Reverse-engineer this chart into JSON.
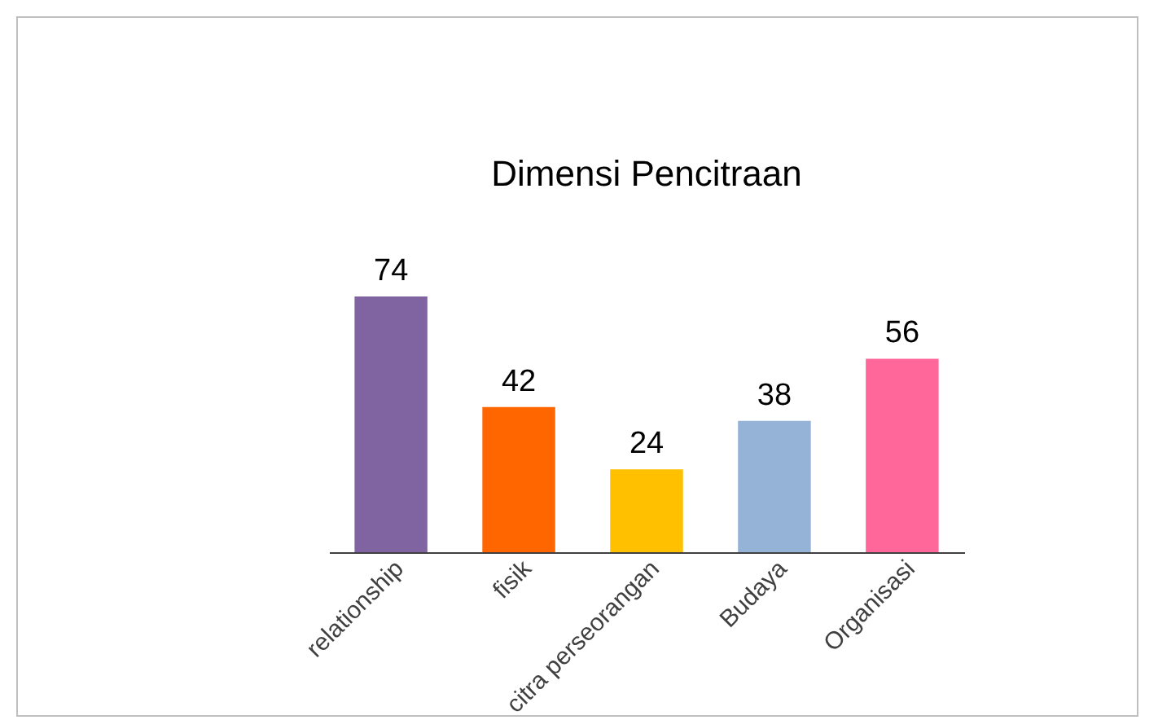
{
  "chart_data": {
    "type": "bar",
    "title": "Dimensi Pencitraan",
    "categories": [
      "relationship",
      "fisik",
      "citra perseorangan",
      "Budaya",
      "Organisasi"
    ],
    "values": [
      74,
      42,
      24,
      38,
      56
    ],
    "colors": [
      "#8064a2",
      "#ff6600",
      "#ffc000",
      "#95b3d7",
      "#ff6699"
    ],
    "data_labels": true,
    "grid": false,
    "legend": false
  }
}
